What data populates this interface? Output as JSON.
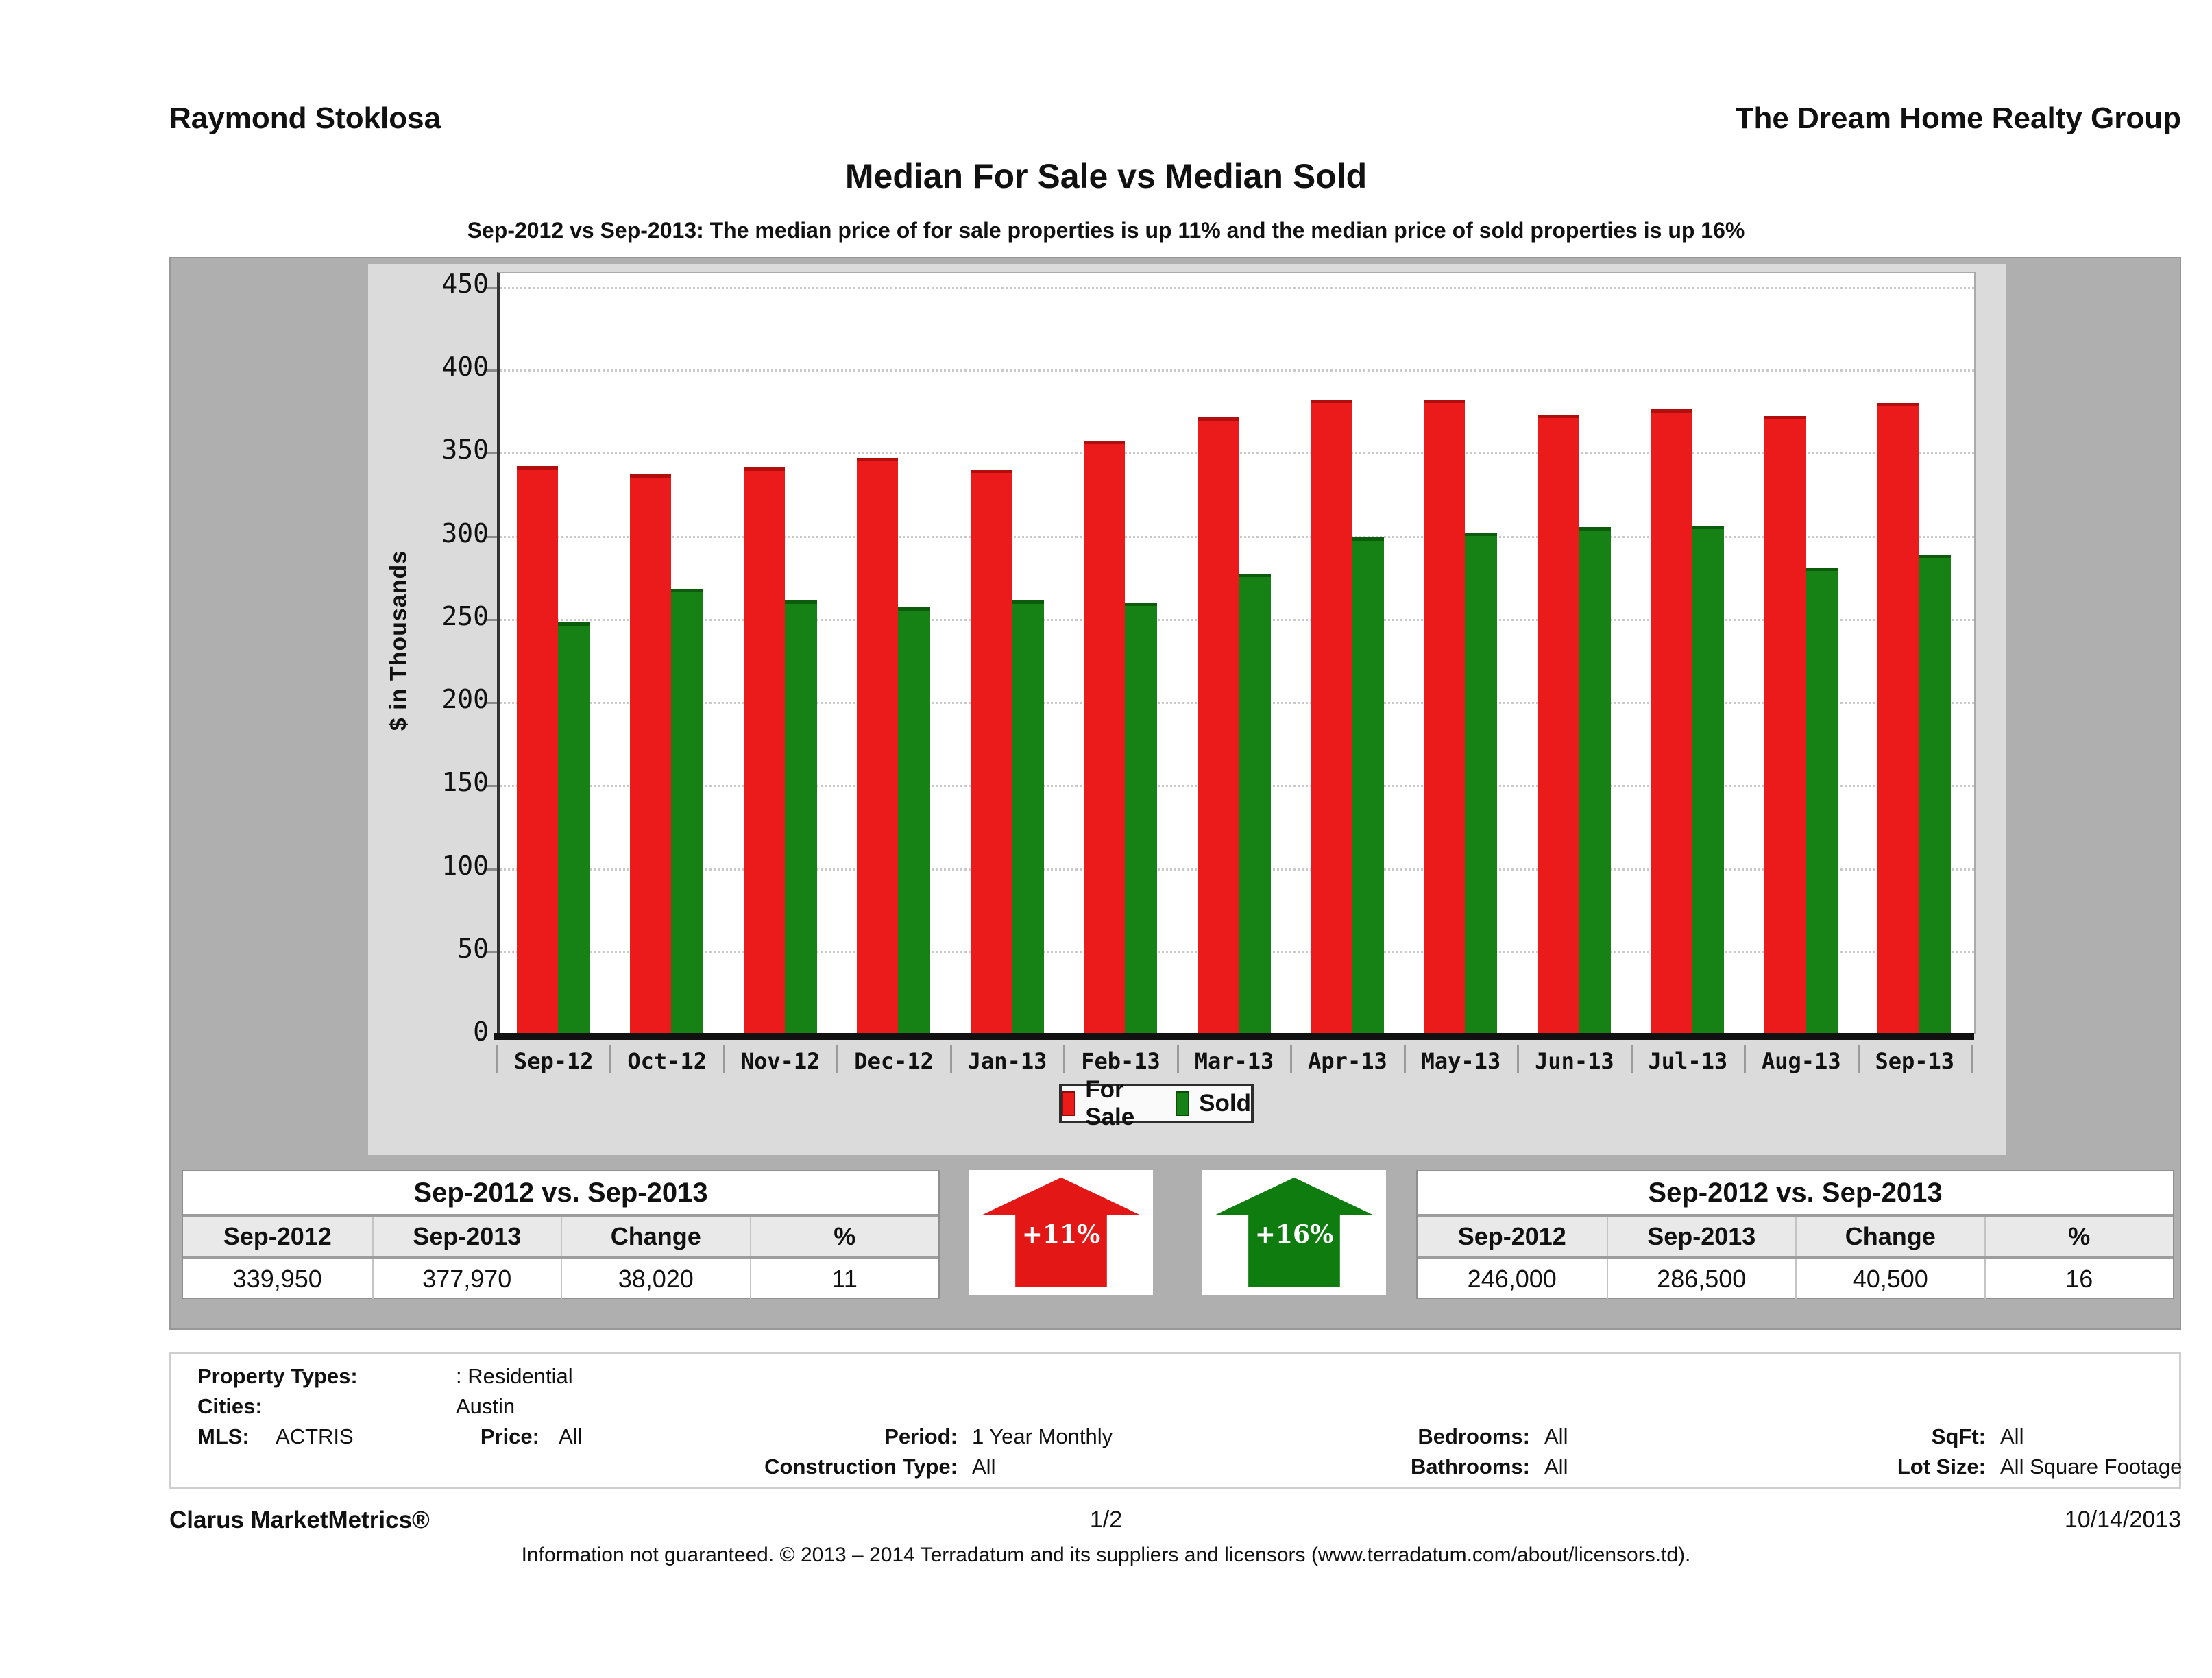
{
  "header": {
    "agent": "Raymond Stoklosa",
    "company": "The Dream Home Realty Group"
  },
  "title": "Median For Sale vs Median Sold",
  "subtitle": "Sep-2012 vs Sep-2013: The median price of for sale properties is up 11% and the median price of sold properties is up 16%",
  "chart_data": {
    "type": "bar",
    "categories": [
      "Sep-12",
      "Oct-12",
      "Nov-12",
      "Dec-12",
      "Jan-13",
      "Feb-13",
      "Mar-13",
      "Apr-13",
      "May-13",
      "Jun-13",
      "Jul-13",
      "Aug-13",
      "Sep-13"
    ],
    "series": [
      {
        "name": "For Sale",
        "color": "#EC1B1B",
        "values": [
          339.95,
          335,
          339,
          345,
          338,
          355,
          369,
          380,
          380,
          371,
          374,
          370,
          377.97
        ]
      },
      {
        "name": "Sold",
        "color": "#168216",
        "values": [
          246,
          266,
          259,
          255,
          259,
          258,
          275,
          297,
          300,
          303,
          304,
          279,
          286.5
        ]
      }
    ],
    "title": "Median For Sale vs Median Sold",
    "xlabel": "",
    "ylabel": "$ in Thousands",
    "ylim": [
      0,
      450
    ],
    "ytick_step": 50,
    "grid": "horizontal-dotted",
    "legend_position": "bottom-center"
  },
  "legend": {
    "for_sale": "For Sale",
    "sold": "Sold"
  },
  "summary_tables": {
    "for_sale": {
      "title": "Sep-2012 vs. Sep-2013",
      "columns": [
        "Sep-2012",
        "Sep-2013",
        "Change",
        "%"
      ],
      "values": [
        "339,950",
        "377,970",
        "38,020",
        "11"
      ]
    },
    "sold": {
      "title": "Sep-2012 vs. Sep-2013",
      "columns": [
        "Sep-2012",
        "Sep-2013",
        "Change",
        "%"
      ],
      "values": [
        "246,000",
        "286,500",
        "40,500",
        "16"
      ]
    }
  },
  "arrows": {
    "for_sale": {
      "label": "+11%",
      "color": "#E41717"
    },
    "sold": {
      "label": "+16%",
      "color": "#0F7C10"
    }
  },
  "filters": {
    "property_types": {
      "label": "Property Types:",
      "value": ": Residential"
    },
    "cities": {
      "label": "Cities:",
      "value": "Austin"
    },
    "mls": {
      "label": "MLS:",
      "value": "ACTRIS"
    },
    "price": {
      "label": "Price:",
      "value": "All"
    },
    "period": {
      "label": "Period:",
      "value": "1 Year Monthly"
    },
    "construction": {
      "label": "Construction Type:",
      "value": "All"
    },
    "bedrooms": {
      "label": "Bedrooms:",
      "value": "All"
    },
    "bathrooms": {
      "label": "Bathrooms:",
      "value": "All"
    },
    "sqft": {
      "label": "SqFt:",
      "value": "All"
    },
    "lot_size": {
      "label": "Lot Size:",
      "value": "All Square Footage"
    }
  },
  "footer": {
    "brand": "Clarus MarketMetrics®",
    "page": "1/2",
    "date": "10/14/2013",
    "disclaimer": "Information not guaranteed. © 2013 – 2014 Terradatum and its suppliers and licensors (www.terradatum.com/about/licensors.td)."
  },
  "colors": {
    "for_sale": "#EC1B1B",
    "sold": "#168216",
    "panel_gray": "#AFAFAF",
    "chart_gray": "#DBDBDB",
    "header_row_gray": "#E9E9E9"
  }
}
